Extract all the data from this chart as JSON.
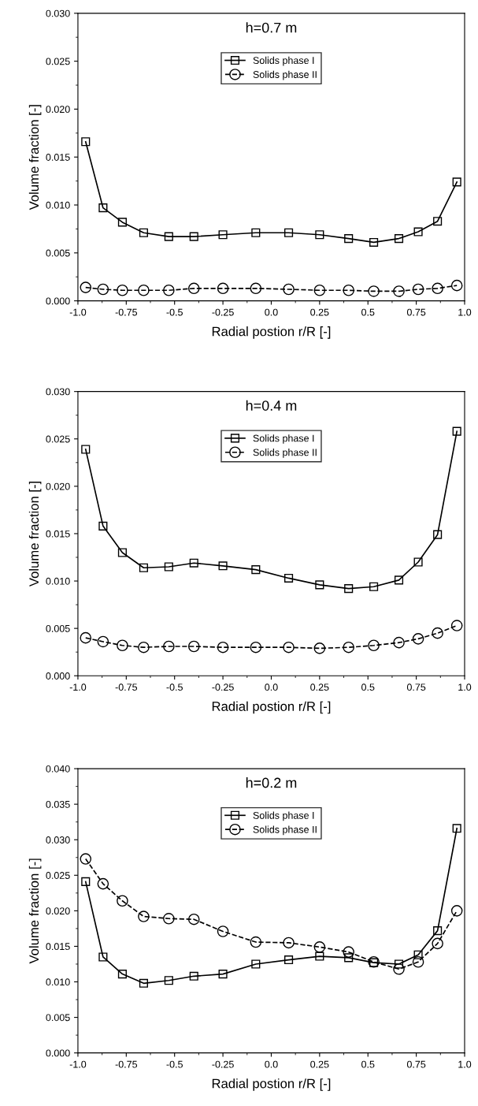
{
  "chart_data": [
    {
      "type": "line",
      "title": "h=0.7 m",
      "xlabel": "Radial postion r/R [-]",
      "ylabel": "Volume fraction [-]",
      "legend": "top",
      "grid": false,
      "x": [
        -0.96,
        -0.87,
        -0.77,
        -0.66,
        -0.53,
        -0.4,
        -0.25,
        -0.08,
        0.09,
        0.25,
        0.4,
        0.53,
        0.66,
        0.76,
        0.86,
        0.96
      ],
      "xlim": [
        -1.0,
        1.0
      ],
      "xticks": [
        {
          "value": -1.0,
          "label": "-1.0"
        },
        {
          "value": -0.75,
          "label": "-0.75"
        },
        {
          "value": -0.5,
          "label": "-0.5"
        },
        {
          "value": -0.25,
          "label": "-0.25"
        },
        {
          "value": 0.0,
          "label": "0.0"
        },
        {
          "value": 0.25,
          "label": "0.25"
        },
        {
          "value": 0.5,
          "label": "0.5"
        },
        {
          "value": 0.75,
          "label": "0.75"
        },
        {
          "value": 1.0,
          "label": "1.0"
        }
      ],
      "ylim": [
        0,
        0.03
      ],
      "yticks": [
        {
          "value": 0,
          "label": "0.000"
        },
        {
          "value": 0.005,
          "label": "0.005"
        },
        {
          "value": 0.01,
          "label": "0.010"
        },
        {
          "value": 0.015,
          "label": "0.015"
        },
        {
          "value": 0.02,
          "label": "0.020"
        },
        {
          "value": 0.025,
          "label": "0.025"
        },
        {
          "value": 0.03,
          "label": "0.030"
        }
      ],
      "series": [
        {
          "name": "Solids phase I",
          "color": "#000000",
          "marker": "square",
          "line_style": "solid",
          "values": [
            0.0166,
            0.0097,
            0.0082,
            0.0071,
            0.0067,
            0.0067,
            0.0069,
            0.0071,
            0.0071,
            0.0069,
            0.0065,
            0.0061,
            0.0065,
            0.0072,
            0.0083,
            0.0124
          ]
        },
        {
          "name": "Solids phase II",
          "color": "#000000",
          "marker": "circle",
          "line_style": "dashed",
          "values": [
            0.0014,
            0.0012,
            0.0011,
            0.0011,
            0.0011,
            0.0013,
            0.0013,
            0.0013,
            0.0012,
            0.0011,
            0.0011,
            0.001,
            0.001,
            0.0012,
            0.0013,
            0.0016
          ]
        }
      ]
    },
    {
      "type": "line",
      "title": "h=0.4 m",
      "xlabel": "Radial postion r/R [-]",
      "ylabel": "Volume fraction [-]",
      "legend": "top",
      "grid": false,
      "x": [
        -0.96,
        -0.87,
        -0.77,
        -0.66,
        -0.53,
        -0.4,
        -0.25,
        -0.08,
        0.09,
        0.25,
        0.4,
        0.53,
        0.66,
        0.76,
        0.86,
        0.96
      ],
      "xlim": [
        -1.0,
        1.0
      ],
      "xticks": [
        {
          "value": -1.0,
          "label": "-1.0"
        },
        {
          "value": -0.75,
          "label": "-0.75"
        },
        {
          "value": -0.5,
          "label": "-0.5"
        },
        {
          "value": -0.25,
          "label": "-0.25"
        },
        {
          "value": 0.0,
          "label": "0.0"
        },
        {
          "value": 0.25,
          "label": "0.25"
        },
        {
          "value": 0.5,
          "label": "0.5"
        },
        {
          "value": 0.75,
          "label": "0.75"
        },
        {
          "value": 1.0,
          "label": "1.0"
        }
      ],
      "ylim": [
        0,
        0.03
      ],
      "yticks": [
        {
          "value": 0,
          "label": "0.000"
        },
        {
          "value": 0.005,
          "label": "0.005"
        },
        {
          "value": 0.01,
          "label": "0.010"
        },
        {
          "value": 0.015,
          "label": "0.015"
        },
        {
          "value": 0.02,
          "label": "0.020"
        },
        {
          "value": 0.025,
          "label": "0.025"
        },
        {
          "value": 0.03,
          "label": "0.030"
        }
      ],
      "series": [
        {
          "name": "Solids phase I",
          "color": "#000000",
          "marker": "square",
          "line_style": "solid",
          "values": [
            0.0239,
            0.0158,
            0.013,
            0.0114,
            0.0115,
            0.0119,
            0.0116,
            0.0112,
            0.0103,
            0.0096,
            0.0092,
            0.0094,
            0.0101,
            0.012,
            0.0149,
            0.0258
          ]
        },
        {
          "name": "Solids phase II",
          "color": "#000000",
          "marker": "circle",
          "line_style": "dashed",
          "values": [
            0.004,
            0.0036,
            0.0032,
            0.003,
            0.0031,
            0.0031,
            0.003,
            0.003,
            0.003,
            0.0029,
            0.003,
            0.0032,
            0.0035,
            0.0039,
            0.0045,
            0.0053
          ]
        }
      ]
    },
    {
      "type": "line",
      "title": "h=0.2 m",
      "xlabel": "Radial postion r/R [-]",
      "ylabel": "Volume fraction [-]",
      "legend": "top",
      "grid": false,
      "x": [
        -0.96,
        -0.87,
        -0.77,
        -0.66,
        -0.53,
        -0.4,
        -0.25,
        -0.08,
        0.09,
        0.25,
        0.4,
        0.53,
        0.66,
        0.76,
        0.86,
        0.96
      ],
      "xlim": [
        -1.0,
        1.0
      ],
      "xticks": [
        {
          "value": -1.0,
          "label": "-1.0"
        },
        {
          "value": -0.75,
          "label": "-0.75"
        },
        {
          "value": -0.5,
          "label": "-0.5"
        },
        {
          "value": -0.25,
          "label": "-0.25"
        },
        {
          "value": 0.0,
          "label": "0.0"
        },
        {
          "value": 0.25,
          "label": "0.25"
        },
        {
          "value": 0.5,
          "label": "0.5"
        },
        {
          "value": 0.75,
          "label": "0.75"
        },
        {
          "value": 1.0,
          "label": "1.0"
        }
      ],
      "ylim": [
        0,
        0.04
      ],
      "yticks": [
        {
          "value": 0,
          "label": "0.000"
        },
        {
          "value": 0.005,
          "label": "0.005"
        },
        {
          "value": 0.01,
          "label": "0.010"
        },
        {
          "value": 0.015,
          "label": "0.015"
        },
        {
          "value": 0.02,
          "label": "0.020"
        },
        {
          "value": 0.025,
          "label": "0.025"
        },
        {
          "value": 0.03,
          "label": "0.030"
        },
        {
          "value": 0.035,
          "label": "0.035"
        },
        {
          "value": 0.04,
          "label": "0.040"
        }
      ],
      "series": [
        {
          "name": "Solids phase I",
          "color": "#000000",
          "marker": "square",
          "line_style": "solid",
          "values": [
            0.0241,
            0.0135,
            0.0111,
            0.0098,
            0.0102,
            0.0108,
            0.0111,
            0.0125,
            0.0131,
            0.0136,
            0.0134,
            0.0127,
            0.0125,
            0.0138,
            0.0172,
            0.0316
          ]
        },
        {
          "name": "Solids phase II",
          "color": "#000000",
          "marker": "circle",
          "line_style": "dashed",
          "values": [
            0.0273,
            0.0238,
            0.0214,
            0.0192,
            0.0189,
            0.0188,
            0.0171,
            0.0156,
            0.0155,
            0.0149,
            0.0142,
            0.0128,
            0.0118,
            0.0128,
            0.0154,
            0.02
          ]
        }
      ]
    }
  ]
}
